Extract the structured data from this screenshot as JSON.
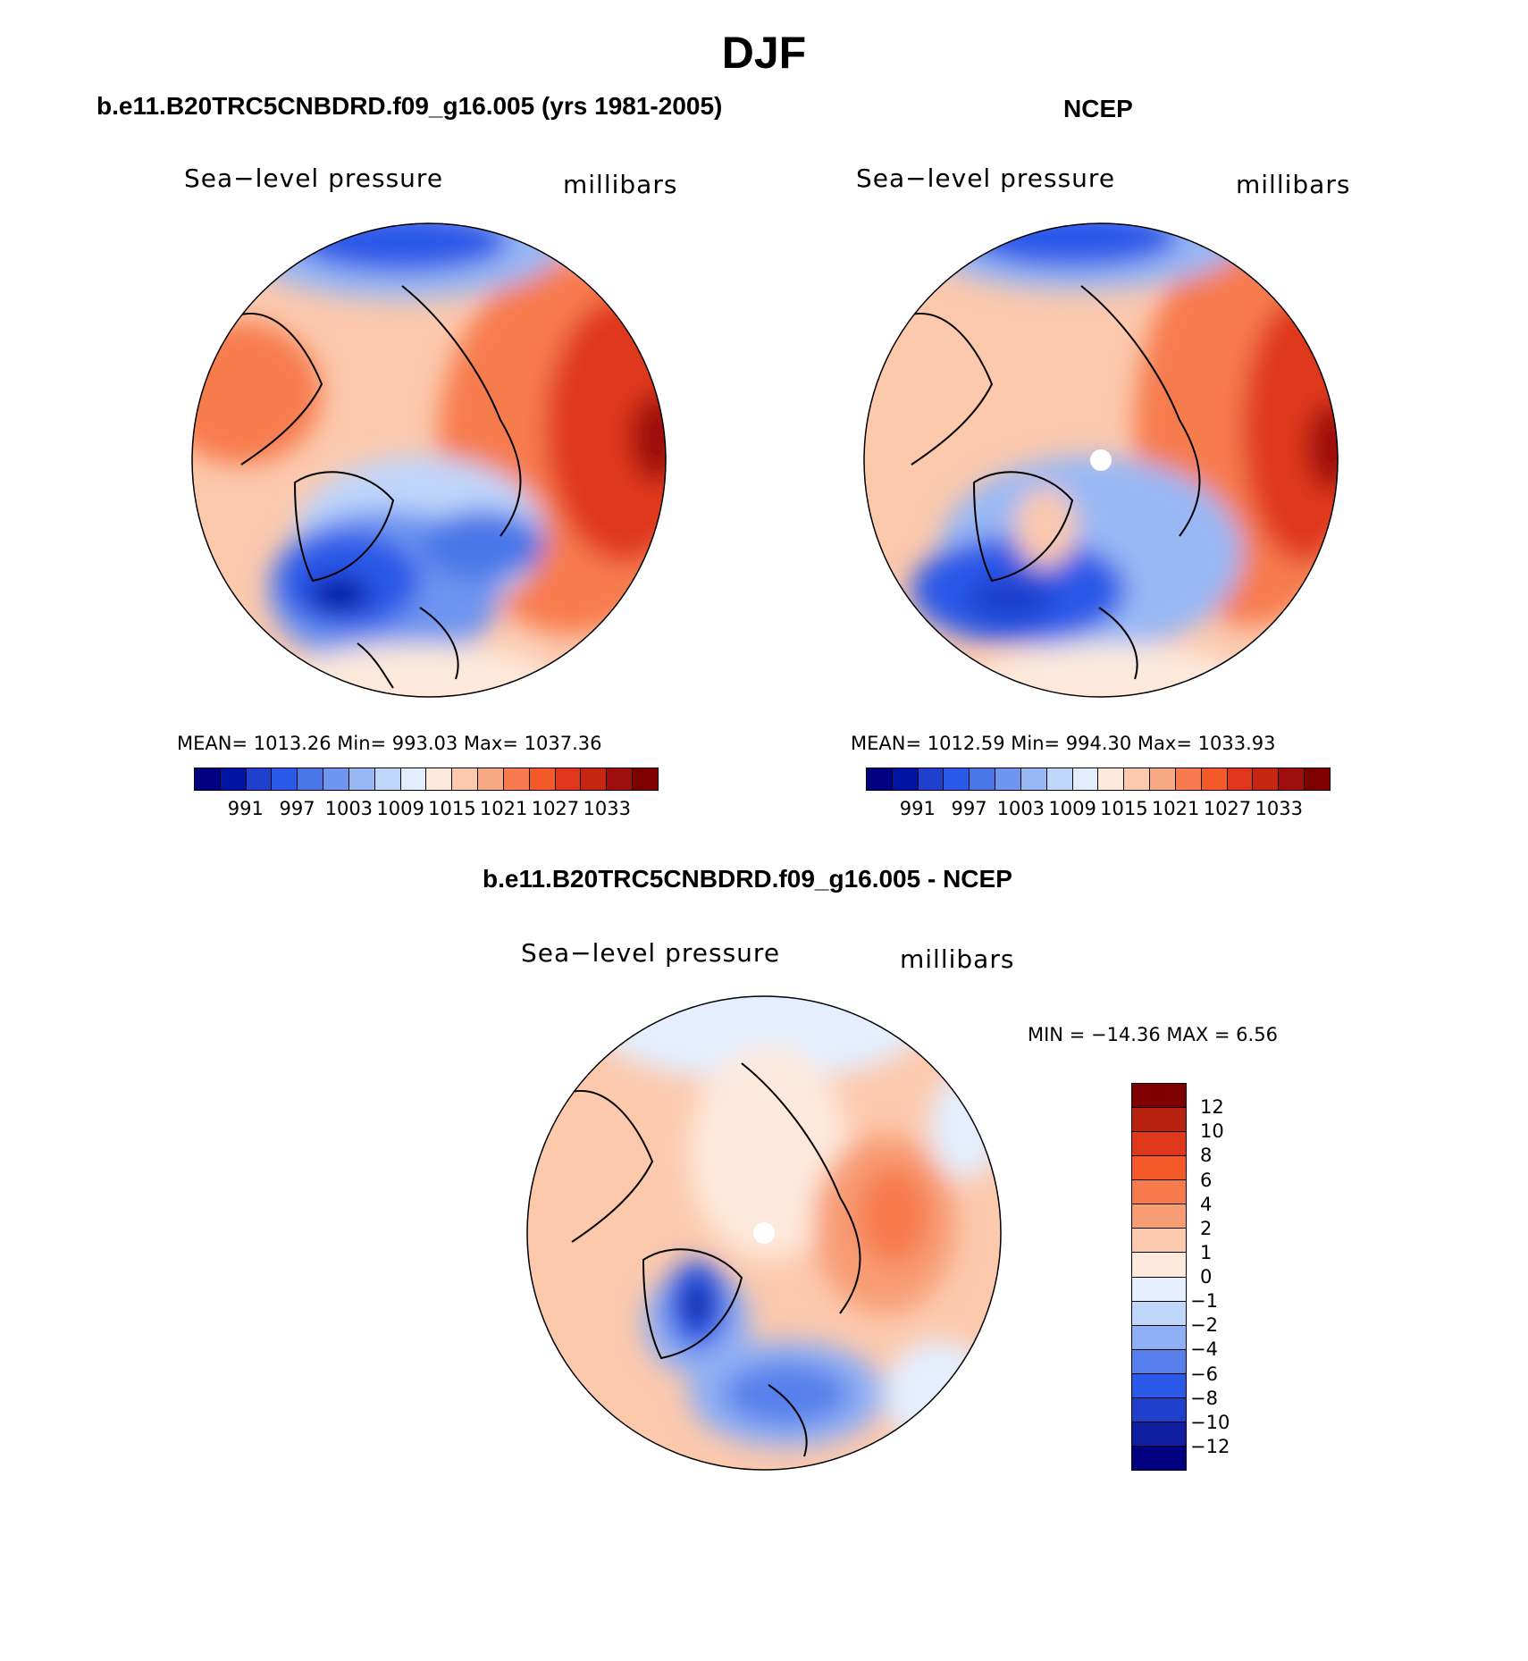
{
  "main_title": "DJF",
  "colors": {
    "abs_scale": [
      "#000080",
      "#0013a3",
      "#1f3fcc",
      "#2b59e8",
      "#4977e8",
      "#6e95f0",
      "#98b8f5",
      "#c0d6fb",
      "#e2eefd",
      "#fde9dc",
      "#fcc9ad",
      "#f8a883",
      "#f77b4e",
      "#f35a27",
      "#e0371a",
      "#c42612",
      "#9e0e0c",
      "#7f0000"
    ],
    "diff_scale": [
      "#000080",
      "#0f1fa0",
      "#1f3fcc",
      "#2b5ae8",
      "#5680ec",
      "#8faff4",
      "#c0d6fb",
      "#e4eefe",
      "#fde9dc",
      "#fcc9ad",
      "#f89c74",
      "#f77a4c",
      "#f35a27",
      "#e0371a",
      "#b8200f",
      "#7f0000"
    ]
  },
  "panels": [
    {
      "title": "b.e11.B20TRC5CNBDRD.f09_g16.005 (yrs 1981-2005)",
      "variable": "Sea−level pressure",
      "units": "millibars",
      "stats": "MEAN=  1013.26   Min=  993.03   Max=  1037.36",
      "colorbar_labels": [
        "991",
        "997",
        "1003",
        "1009",
        "1015",
        "1021",
        "1027",
        "1033"
      ]
    },
    {
      "title": "NCEP",
      "variable": "Sea−level pressure",
      "units": "millibars",
      "stats": "MEAN=  1012.59   Min=  994.30   Max=  1033.93",
      "colorbar_labels": [
        "991",
        "997",
        "1003",
        "1009",
        "1015",
        "1021",
        "1027",
        "1033"
      ]
    }
  ],
  "difference": {
    "title": "b.e11.B20TRC5CNBDRD.f09_g16.005 - NCEP",
    "variable": "Sea−level pressure",
    "units": "millibars",
    "stats": "MIN  =  −14.36  MAX  =     6.56",
    "colorbar_labels": [
      "12",
      "10",
      "8",
      "6",
      "4",
      "2",
      "1",
      "0",
      "−1",
      "−2",
      "−4",
      "−6",
      "−8",
      "−10",
      "−12"
    ]
  }
}
